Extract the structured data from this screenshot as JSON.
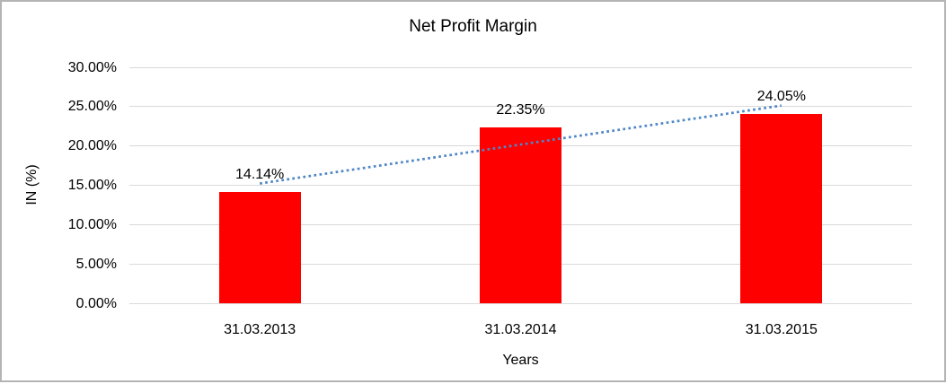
{
  "chart_data": {
    "type": "bar",
    "title": "Net Profit Margin",
    "xlabel": "Years",
    "ylabel": "IN (%)",
    "categories": [
      "31.03.2013",
      "31.03.2014",
      "31.03.2015"
    ],
    "values": [
      14.14,
      22.35,
      24.05
    ],
    "data_labels": [
      "14.14%",
      "22.35%",
      "24.05%"
    ],
    "ylim": [
      0,
      30
    ],
    "ytick_step": 5,
    "ytick_labels": [
      "0.00%",
      "5.00%",
      "10.00%",
      "15.00%",
      "20.00%",
      "25.00%",
      "30.00%"
    ],
    "grid": true,
    "legend": "none",
    "bar_color": "#ff0000",
    "gridline_color": "#d9d9d9",
    "trendline": {
      "type": "linear",
      "style": "dotted",
      "color": "#4e86c6"
    }
  }
}
